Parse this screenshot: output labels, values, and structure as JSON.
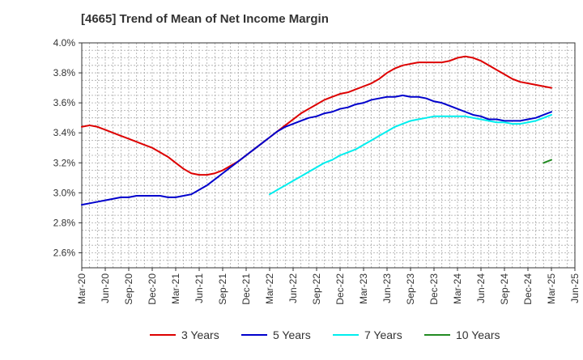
{
  "chart_data": {
    "type": "line",
    "title": "[4665]  Trend of Mean of Net Income Margin",
    "ylim": [
      2.5,
      4.0
    ],
    "yticks": [
      2.6,
      2.8,
      3.0,
      3.2,
      3.4,
      3.6,
      3.8,
      4.0
    ],
    "ytick_labels": [
      "2.6%",
      "2.8%",
      "3.0%",
      "3.2%",
      "3.4%",
      "3.6%",
      "3.8%",
      "4.0%"
    ],
    "xtick_labels": [
      "Mar-20",
      "Jun-20",
      "Sep-20",
      "Dec-20",
      "Mar-21",
      "Jun-21",
      "Sep-21",
      "Dec-21",
      "Mar-22",
      "Jun-22",
      "Sep-22",
      "Dec-22",
      "Mar-23",
      "Jun-23",
      "Sep-23",
      "Dec-23",
      "Mar-24",
      "Jun-24",
      "Sep-24",
      "Dec-24",
      "Mar-25",
      "Jun-25"
    ],
    "x_unit": "month",
    "grid": true,
    "legend_position": "bottom",
    "series": [
      {
        "name": "3 Years",
        "color": "#dd0000",
        "points": [
          [
            "Mar-20",
            3.44
          ],
          [
            "Apr-20",
            3.45
          ],
          [
            "May-20",
            3.44
          ],
          [
            "Jun-20",
            3.42
          ],
          [
            "Jul-20",
            3.4
          ],
          [
            "Aug-20",
            3.38
          ],
          [
            "Sep-20",
            3.36
          ],
          [
            "Oct-20",
            3.34
          ],
          [
            "Nov-20",
            3.32
          ],
          [
            "Dec-20",
            3.3
          ],
          [
            "Jan-21",
            3.27
          ],
          [
            "Feb-21",
            3.24
          ],
          [
            "Mar-21",
            3.2
          ],
          [
            "Apr-21",
            3.16
          ],
          [
            "May-21",
            3.13
          ],
          [
            "Jun-21",
            3.12
          ],
          [
            "Jul-21",
            3.12
          ],
          [
            "Aug-21",
            3.13
          ],
          [
            "Sep-21",
            3.15
          ],
          [
            "Oct-21",
            3.18
          ],
          [
            "Nov-21",
            3.21
          ],
          [
            "Dec-21",
            3.25
          ],
          [
            "Jan-22",
            3.29
          ],
          [
            "Feb-22",
            3.33
          ],
          [
            "Mar-22",
            3.37
          ],
          [
            "Apr-22",
            3.41
          ],
          [
            "May-22",
            3.45
          ],
          [
            "Jun-22",
            3.49
          ],
          [
            "Jul-22",
            3.53
          ],
          [
            "Aug-22",
            3.56
          ],
          [
            "Sep-22",
            3.59
          ],
          [
            "Oct-22",
            3.62
          ],
          [
            "Nov-22",
            3.64
          ],
          [
            "Dec-22",
            3.66
          ],
          [
            "Jan-23",
            3.67
          ],
          [
            "Feb-23",
            3.69
          ],
          [
            "Mar-23",
            3.71
          ],
          [
            "Apr-23",
            3.73
          ],
          [
            "May-23",
            3.76
          ],
          [
            "Jun-23",
            3.8
          ],
          [
            "Jul-23",
            3.83
          ],
          [
            "Aug-23",
            3.85
          ],
          [
            "Sep-23",
            3.86
          ],
          [
            "Oct-23",
            3.87
          ],
          [
            "Nov-23",
            3.87
          ],
          [
            "Dec-23",
            3.87
          ],
          [
            "Jan-24",
            3.87
          ],
          [
            "Feb-24",
            3.88
          ],
          [
            "Mar-24",
            3.9
          ],
          [
            "Apr-24",
            3.91
          ],
          [
            "May-24",
            3.9
          ],
          [
            "Jun-24",
            3.88
          ],
          [
            "Jul-24",
            3.85
          ],
          [
            "Aug-24",
            3.82
          ],
          [
            "Sep-24",
            3.79
          ],
          [
            "Oct-24",
            3.76
          ],
          [
            "Nov-24",
            3.74
          ],
          [
            "Dec-24",
            3.73
          ],
          [
            "Jan-25",
            3.72
          ],
          [
            "Feb-25",
            3.71
          ],
          [
            "Mar-25",
            3.7
          ]
        ]
      },
      {
        "name": "5 Years",
        "color": "#0000cc",
        "points": [
          [
            "Mar-20",
            2.92
          ],
          [
            "Apr-20",
            2.93
          ],
          [
            "May-20",
            2.94
          ],
          [
            "Jun-20",
            2.95
          ],
          [
            "Jul-20",
            2.96
          ],
          [
            "Aug-20",
            2.97
          ],
          [
            "Sep-20",
            2.97
          ],
          [
            "Oct-20",
            2.98
          ],
          [
            "Nov-20",
            2.98
          ],
          [
            "Dec-20",
            2.98
          ],
          [
            "Jan-21",
            2.98
          ],
          [
            "Feb-21",
            2.97
          ],
          [
            "Mar-21",
            2.97
          ],
          [
            "Apr-21",
            2.98
          ],
          [
            "May-21",
            2.99
          ],
          [
            "Jun-21",
            3.02
          ],
          [
            "Jul-21",
            3.05
          ],
          [
            "Aug-21",
            3.09
          ],
          [
            "Sep-21",
            3.13
          ],
          [
            "Oct-21",
            3.17
          ],
          [
            "Nov-21",
            3.21
          ],
          [
            "Dec-21",
            3.25
          ],
          [
            "Jan-22",
            3.29
          ],
          [
            "Feb-22",
            3.33
          ],
          [
            "Mar-22",
            3.37
          ],
          [
            "Apr-22",
            3.41
          ],
          [
            "May-22",
            3.44
          ],
          [
            "Jun-22",
            3.46
          ],
          [
            "Jul-22",
            3.48
          ],
          [
            "Aug-22",
            3.5
          ],
          [
            "Sep-22",
            3.51
          ],
          [
            "Oct-22",
            3.53
          ],
          [
            "Nov-22",
            3.54
          ],
          [
            "Dec-22",
            3.56
          ],
          [
            "Jan-23",
            3.57
          ],
          [
            "Feb-23",
            3.59
          ],
          [
            "Mar-23",
            3.6
          ],
          [
            "Apr-23",
            3.62
          ],
          [
            "May-23",
            3.63
          ],
          [
            "Jun-23",
            3.64
          ],
          [
            "Jul-23",
            3.64
          ],
          [
            "Aug-23",
            3.65
          ],
          [
            "Sep-23",
            3.64
          ],
          [
            "Oct-23",
            3.64
          ],
          [
            "Nov-23",
            3.63
          ],
          [
            "Dec-23",
            3.61
          ],
          [
            "Jan-24",
            3.6
          ],
          [
            "Feb-24",
            3.58
          ],
          [
            "Mar-24",
            3.56
          ],
          [
            "Apr-24",
            3.54
          ],
          [
            "May-24",
            3.52
          ],
          [
            "Jun-24",
            3.51
          ],
          [
            "Jul-24",
            3.49
          ],
          [
            "Aug-24",
            3.49
          ],
          [
            "Sep-24",
            3.48
          ],
          [
            "Oct-24",
            3.48
          ],
          [
            "Nov-24",
            3.48
          ],
          [
            "Dec-24",
            3.49
          ],
          [
            "Jan-25",
            3.5
          ],
          [
            "Feb-25",
            3.52
          ],
          [
            "Mar-25",
            3.54
          ]
        ]
      },
      {
        "name": "7 Years",
        "color": "#00eeee",
        "points": [
          [
            "Mar-22",
            2.99
          ],
          [
            "Apr-22",
            3.02
          ],
          [
            "May-22",
            3.05
          ],
          [
            "Jun-22",
            3.08
          ],
          [
            "Jul-22",
            3.11
          ],
          [
            "Aug-22",
            3.14
          ],
          [
            "Sep-22",
            3.17
          ],
          [
            "Oct-22",
            3.2
          ],
          [
            "Nov-22",
            3.22
          ],
          [
            "Dec-22",
            3.25
          ],
          [
            "Jan-23",
            3.27
          ],
          [
            "Feb-23",
            3.29
          ],
          [
            "Mar-23",
            3.32
          ],
          [
            "Apr-23",
            3.35
          ],
          [
            "May-23",
            3.38
          ],
          [
            "Jun-23",
            3.41
          ],
          [
            "Jul-23",
            3.44
          ],
          [
            "Aug-23",
            3.46
          ],
          [
            "Sep-23",
            3.48
          ],
          [
            "Oct-23",
            3.49
          ],
          [
            "Nov-23",
            3.5
          ],
          [
            "Dec-23",
            3.51
          ],
          [
            "Jan-24",
            3.51
          ],
          [
            "Feb-24",
            3.51
          ],
          [
            "Mar-24",
            3.51
          ],
          [
            "Apr-24",
            3.51
          ],
          [
            "May-24",
            3.5
          ],
          [
            "Jun-24",
            3.49
          ],
          [
            "Jul-24",
            3.48
          ],
          [
            "Aug-24",
            3.47
          ],
          [
            "Sep-24",
            3.47
          ],
          [
            "Oct-24",
            3.46
          ],
          [
            "Nov-24",
            3.46
          ],
          [
            "Dec-24",
            3.47
          ],
          [
            "Jan-25",
            3.48
          ],
          [
            "Feb-25",
            3.5
          ],
          [
            "Mar-25",
            3.52
          ]
        ]
      },
      {
        "name": "10 Years",
        "color": "#228b22",
        "points": [
          [
            "Feb-25",
            3.2
          ],
          [
            "Mar-25",
            3.22
          ]
        ]
      }
    ]
  }
}
